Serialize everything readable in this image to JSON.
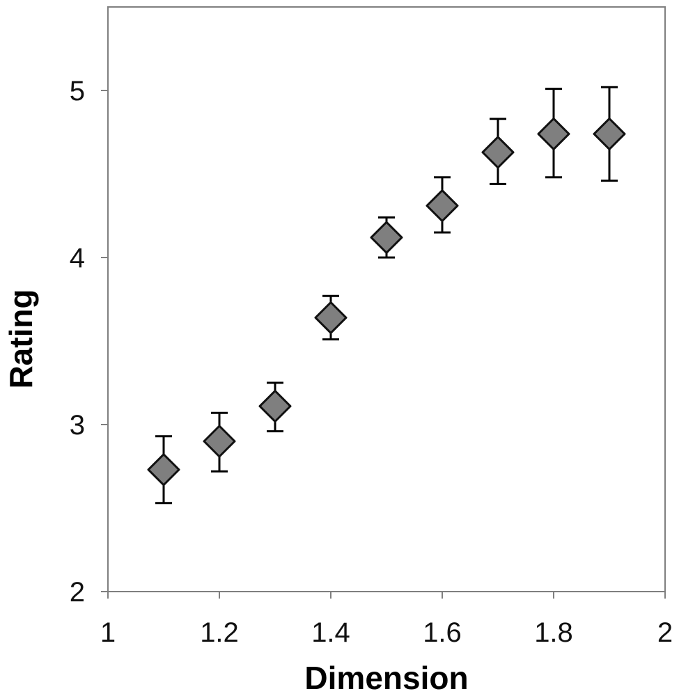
{
  "chart_data": {
    "type": "scatter",
    "title": "",
    "xlabel": "Dimension",
    "ylabel": "Rating",
    "xlim": [
      1,
      2
    ],
    "ylim": [
      2,
      5.5
    ],
    "x_ticks": [
      1,
      1.2,
      1.4,
      1.6,
      1.8,
      2
    ],
    "x_tick_labels": [
      "1",
      "1.2",
      "1.4",
      "1.6",
      "1.8",
      "2"
    ],
    "y_ticks": [
      2,
      3,
      4,
      5
    ],
    "y_tick_labels": [
      "2",
      "3",
      "4",
      "5"
    ],
    "grid": false,
    "marker": "diamond",
    "marker_color": "#7f7f7f",
    "series": [
      {
        "x": [
          1.1,
          1.2,
          1.3,
          1.4,
          1.5,
          1.6,
          1.7,
          1.8,
          1.9
        ],
        "y": [
          2.73,
          2.9,
          3.11,
          3.64,
          4.12,
          4.31,
          4.63,
          4.74,
          4.74
        ],
        "error_low": [
          2.53,
          2.72,
          2.96,
          3.51,
          4.0,
          4.15,
          4.44,
          4.48,
          4.46
        ],
        "error_high": [
          2.93,
          3.07,
          3.25,
          3.77,
          4.24,
          4.48,
          4.83,
          5.01,
          5.02
        ]
      }
    ]
  }
}
